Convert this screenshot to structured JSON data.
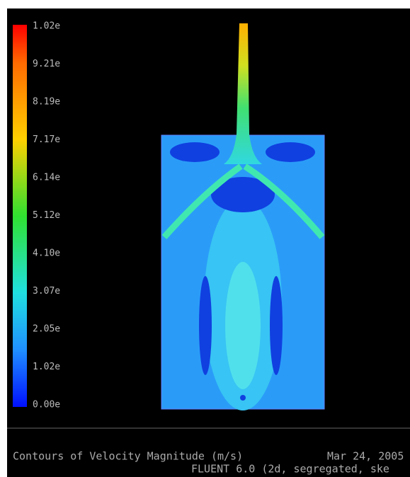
{
  "colorbar": {
    "labels": [
      "1.02e",
      "9.21e",
      "8.19e",
      "7.17e",
      "6.14e",
      "5.12e",
      "4.10e",
      "3.07e",
      "2.05e",
      "1.02e",
      "0.00e"
    ]
  },
  "footer": {
    "title": "Contours of Velocity Magnitude (m/s)",
    "date": "Mar 24, 2005",
    "solver": "FLUENT 6.0 (2d, segregated, ske"
  }
}
